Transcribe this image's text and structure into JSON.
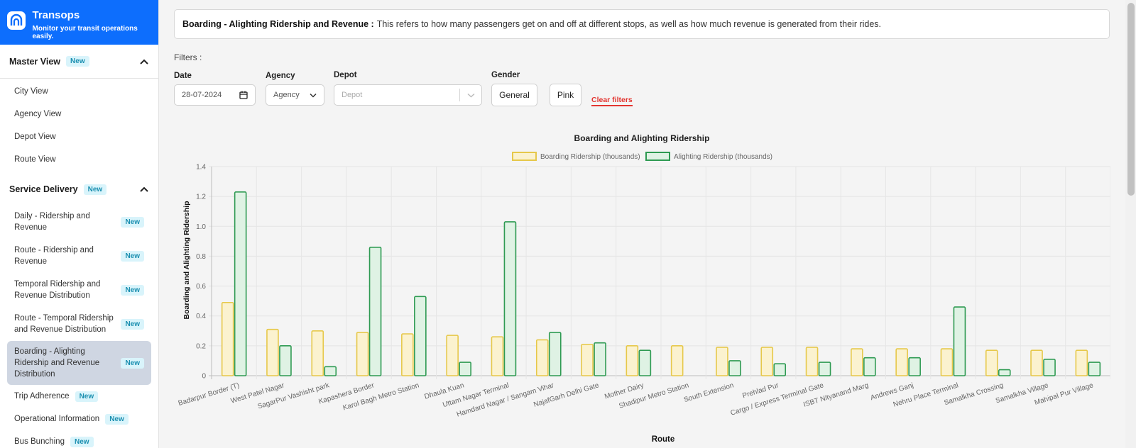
{
  "brand": {
    "title": "Transops",
    "subtitle": "Monitor your transit operations easily."
  },
  "sidebar": {
    "sections": [
      {
        "title": "Master View",
        "badge": "New",
        "items": [
          {
            "label": "City View"
          },
          {
            "label": "Agency View"
          },
          {
            "label": "Depot View"
          },
          {
            "label": "Route View"
          }
        ]
      },
      {
        "title": "Service Delivery",
        "badge": "New",
        "items": [
          {
            "label": "Daily - Ridership and Revenue",
            "badge": "New"
          },
          {
            "label": "Route - Ridership and Revenue",
            "badge": "New"
          },
          {
            "label": "Temporal Ridership and Revenue Distribution",
            "badge": "New"
          },
          {
            "label": "Route - Temporal Ridership and Revenue Distribution",
            "badge": "New"
          },
          {
            "label": "Boarding - Alighting Ridership and Revenue Distribution",
            "badge": "New"
          },
          {
            "label": "Trip Adherence",
            "badge": "New"
          },
          {
            "label": "Operational Information",
            "badge": "New"
          },
          {
            "label": "Bus Bunching",
            "badge": "New"
          }
        ]
      }
    ]
  },
  "info": {
    "title": "Boarding - Alighting Ridership and Revenue :",
    "text": "This refers to how many passengers get on and off at different stops, as well as how much revenue is generated from their rides."
  },
  "filters": {
    "title": "Filters :",
    "date_label": "Date",
    "date_value": "28-07-2024",
    "agency_label": "Agency",
    "agency_value": "Agency",
    "depot_label": "Depot",
    "depot_placeholder": "Depot",
    "gender_label": "Gender",
    "gender_options": [
      "General",
      "Pink"
    ],
    "clear_label": "Clear filters"
  },
  "colors": {
    "brand": "#0d6efd",
    "boarding": "#e6c84a",
    "alighting": "#2e9a52",
    "clear": "#e3342f"
  },
  "chart_data": {
    "type": "bar",
    "title": "Boarding and Alighting Ridership",
    "xlabel": "Route",
    "ylabel": "Boarding and Alighting Ridership",
    "ylim": [
      0,
      1.4
    ],
    "yticks": [
      "0",
      "0.2",
      "0.4",
      "0.6",
      "0.8",
      "1.0",
      "1.2",
      "1.4"
    ],
    "grid": true,
    "legend_position": "top",
    "categories": [
      "Badarpur Border (T)",
      "West Patel Nagar",
      "SagarPur Vashisht park",
      "Kapashera Border",
      "Karol Bagh Metro Station",
      "Dhaula Kuan",
      "Uttam Nagar Terminal",
      "Hamdard Nagar / Sangam Vihar",
      "NajafGarh Delhi Gate",
      "Mother Dairy",
      "Shadipur Metro Station",
      "South Extension",
      "Prehlad Pur",
      "Cargo / Express Terminal Gate",
      "ISBT Nityanand Marg",
      "Andrews Ganj",
      "Nehru Place Terminal",
      "Samalkha Crossing",
      "Samalkha Village",
      "Mahipal Pur Village"
    ],
    "series": [
      {
        "name": "Boarding Ridership (thousands)",
        "values": [
          0.49,
          0.31,
          0.3,
          0.29,
          0.28,
          0.27,
          0.26,
          0.24,
          0.21,
          0.2,
          0.2,
          0.19,
          0.19,
          0.19,
          0.18,
          0.18,
          0.18,
          0.17,
          0.17,
          0.17
        ]
      },
      {
        "name": "Alighting Ridership (thousands)",
        "values": [
          1.23,
          0.2,
          0.06,
          0.86,
          0.53,
          0.09,
          1.03,
          0.29,
          0.22,
          0.17,
          0,
          0.1,
          0.08,
          0.09,
          0.12,
          0.12,
          0.46,
          0.04,
          0.11,
          0.09
        ]
      }
    ]
  }
}
